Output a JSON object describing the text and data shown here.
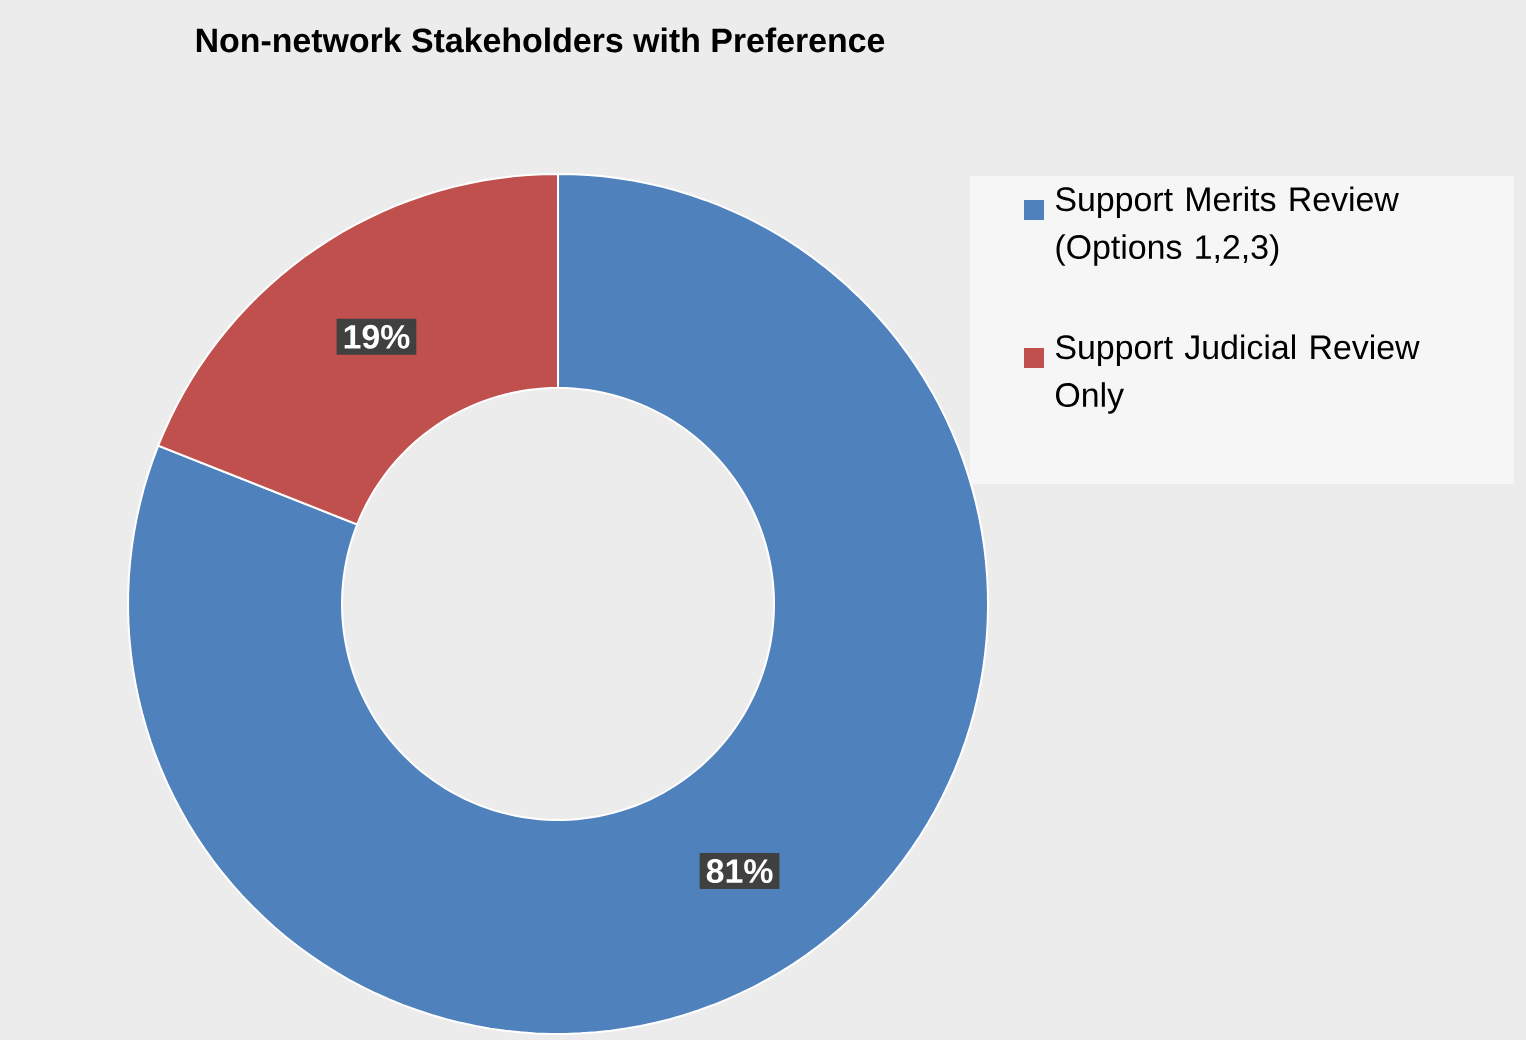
{
  "chart_data": {
    "type": "donut",
    "title": "Non-network Stakeholders with Preference",
    "categories": [
      "Support Merits Review (Options 1,2,3)",
      "Support Judicial Review Only"
    ],
    "values": [
      81,
      19
    ],
    "colors": [
      "#4f81bd",
      "#c0504d"
    ],
    "value_labels": [
      "81%",
      "19%"
    ],
    "legend": "right"
  }
}
